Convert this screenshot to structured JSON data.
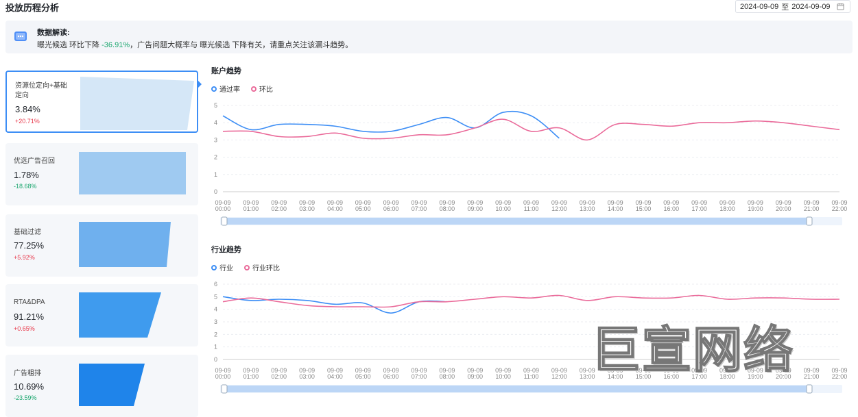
{
  "header": {
    "title": "投放历程分析",
    "date_start": "2024-09-09",
    "date_sep": "至",
    "date_end": "2024-09-09"
  },
  "insight": {
    "title": "数据解读:",
    "text_a": "曝光候选 环比下降 ",
    "text_pct": "-36.91%",
    "text_b": "，广告问题大概率与 曝光候选 下降有关，请重点关注该漏斗趋势。"
  },
  "funnel": [
    {
      "label": "资源位定向+基础定向",
      "value": "3.84%",
      "change": "+20.71%",
      "direction": "up"
    },
    {
      "label": "优选广告召回",
      "value": "1.78%",
      "change": "-18.68%",
      "direction": "down"
    },
    {
      "label": "基础过滤",
      "value": "77.25%",
      "change": "+5.92%",
      "direction": "up"
    },
    {
      "label": "RTA&DPA",
      "value": "91.21%",
      "change": "+0.65%",
      "direction": "up"
    },
    {
      "label": "广告粗排",
      "value": "10.69%",
      "change": "-23.59%",
      "direction": "down"
    }
  ],
  "account_chart": {
    "title": "账户趋势",
    "legend_a": "通过率",
    "legend_b": "环比"
  },
  "industry_chart": {
    "title": "行业趋势",
    "legend_a": "行业",
    "legend_b": "行业环比"
  },
  "watermark": "巨宣网络",
  "colors": {
    "blue": "#3d8ef5",
    "pink": "#ea6b9a",
    "green": "#1aa66e",
    "red": "#e8384a"
  },
  "chart_data": [
    {
      "type": "line",
      "title": "账户趋势",
      "x": [
        "09-09 00:00",
        "09-09 01:00",
        "09-09 02:00",
        "09-09 03:00",
        "09-09 04:00",
        "09-09 05:00",
        "09-09 06:00",
        "09-09 07:00",
        "09-09 08:00",
        "09-09 09:00",
        "09-09 10:00",
        "09-09 11:00",
        "09-09 12:00",
        "09-09 13:00",
        "09-09 14:00",
        "09-09 15:00",
        "09-09 16:00",
        "09-09 17:00",
        "09-09 18:00",
        "09-09 19:00",
        "09-09 20:00",
        "09-09 21:00",
        "09-09 22:00"
      ],
      "ylim": [
        0,
        5
      ],
      "yticks": [
        0,
        1,
        2,
        3,
        4,
        5
      ],
      "series": [
        {
          "name": "通过率",
          "values": [
            4.4,
            3.6,
            3.9,
            3.9,
            3.8,
            3.5,
            3.5,
            3.9,
            4.3,
            3.7,
            4.6,
            4.4,
            3.1,
            null,
            null,
            null,
            null,
            null,
            null,
            null,
            null,
            null,
            null
          ]
        },
        {
          "name": "环比",
          "values": [
            3.5,
            3.5,
            3.2,
            3.2,
            3.4,
            3.1,
            3.1,
            3.3,
            3.3,
            3.7,
            4.2,
            3.5,
            3.7,
            3.0,
            3.9,
            3.9,
            3.8,
            4.0,
            4.0,
            4.1,
            4.0,
            3.8,
            3.6
          ]
        }
      ]
    },
    {
      "type": "line",
      "title": "行业趋势",
      "x": [
        "09-09 00:00",
        "09-09 01:00",
        "09-09 02:00",
        "09-09 03:00",
        "09-09 04:00",
        "09-09 05:00",
        "09-09 06:00",
        "09-09 07:00",
        "09-09 08:00",
        "09-09 09:00",
        "09-09 10:00",
        "09-09 11:00",
        "09-09 12:00",
        "09-09 13:00",
        "09-09 14:00",
        "09-09 15:00",
        "09-09 16:00",
        "09-09 17:00",
        "09-09 18:00",
        "09-09 19:00",
        "09-09 20:00",
        "09-09 21:00",
        "09-09 22:00"
      ],
      "ylim": [
        0,
        6
      ],
      "yticks": [
        0,
        1,
        2,
        3,
        4,
        5,
        6
      ],
      "series": [
        {
          "name": "行业",
          "values": [
            5.0,
            4.7,
            4.8,
            4.7,
            4.4,
            4.5,
            3.7,
            4.6,
            4.6,
            null,
            null,
            null,
            null,
            null,
            null,
            null,
            null,
            null,
            null,
            null,
            null,
            null,
            null
          ]
        },
        {
          "name": "行业环比",
          "values": [
            4.6,
            4.9,
            4.6,
            4.3,
            4.2,
            4.2,
            4.2,
            4.6,
            4.6,
            4.8,
            5.0,
            4.9,
            5.1,
            4.7,
            5.0,
            4.9,
            4.9,
            5.1,
            4.8,
            4.9,
            4.9,
            4.8,
            4.8
          ]
        }
      ]
    }
  ]
}
